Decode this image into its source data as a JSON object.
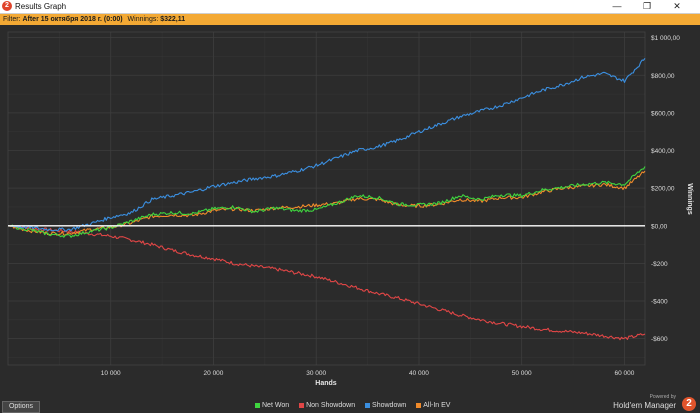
{
  "window": {
    "title": "Results Graph",
    "app_icon": "hm2-icon",
    "minimize_glyph": "—",
    "restore_glyph": "❐",
    "close_glyph": "✕"
  },
  "filter": {
    "prefix": "Filter:",
    "text": "After 15 октября 2018 г. (0:00)",
    "winnings_label": "Winnings:",
    "winnings_value": "$322,11"
  },
  "options_label": "Options",
  "brand": {
    "powered_by": "Powered by",
    "name": "Hold'em Manager",
    "logo_glyph": "2"
  },
  "colors": {
    "background": "#2b2b2b",
    "grid": "#3e3e3e",
    "zero_line": "#ffffff",
    "net_won": "#3fd53f",
    "non_showdown": "#e04646",
    "showdown": "#3b8fe0",
    "all_in_ev": "#f08a2a",
    "filter_bar": "#f3a934"
  },
  "chart_data": {
    "type": "line",
    "xlabel": "Hands",
    "ylabel": "Winnings",
    "xlim": [
      0,
      62000
    ],
    "ylim": [
      -740,
      1030
    ],
    "x_ticks": [
      10000,
      20000,
      30000,
      40000,
      50000,
      60000
    ],
    "x_tick_labels": [
      "10 000",
      "20 000",
      "30 000",
      "40 000",
      "50 000",
      "60 000"
    ],
    "y_ticks": [
      1000,
      800,
      600,
      400,
      200,
      0,
      -200,
      -400,
      -600
    ],
    "y_tick_labels": [
      "$1 000,00",
      "$800,00",
      "$600,00",
      "$400,00",
      "$200,00",
      "$0,00",
      "-$200",
      "-$400",
      "-$600"
    ],
    "grid": true,
    "legend_position": "bottom",
    "x": [
      0,
      2000,
      4000,
      6000,
      8000,
      10000,
      12000,
      14000,
      16000,
      18000,
      20000,
      22000,
      24000,
      26000,
      28000,
      30000,
      32000,
      34000,
      36000,
      38000,
      40000,
      42000,
      44000,
      46000,
      48000,
      50000,
      52000,
      54000,
      56000,
      58000,
      60000,
      62000
    ],
    "series": [
      {
        "name": "Net Won",
        "color": "#3fd53f",
        "values": [
          0,
          -20,
          -45,
          -55,
          -30,
          -10,
          25,
          60,
          70,
          65,
          90,
          100,
          75,
          95,
          80,
          85,
          120,
          160,
          150,
          115,
          110,
          120,
          160,
          140,
          165,
          160,
          190,
          205,
          220,
          230,
          220,
          315
        ]
      },
      {
        "name": "Non Showdown",
        "color": "#e04646",
        "values": [
          0,
          -12,
          -22,
          -30,
          -42,
          -55,
          -75,
          -100,
          -130,
          -155,
          -175,
          -200,
          -215,
          -230,
          -250,
          -270,
          -300,
          -330,
          -360,
          -385,
          -415,
          -445,
          -475,
          -500,
          -520,
          -535,
          -550,
          -560,
          -570,
          -585,
          -600,
          -575
        ]
      },
      {
        "name": "Showdown",
        "color": "#3b8fe0",
        "values": [
          0,
          -8,
          -20,
          -20,
          10,
          45,
          70,
          140,
          160,
          180,
          210,
          230,
          250,
          265,
          290,
          320,
          360,
          400,
          420,
          455,
          500,
          540,
          580,
          610,
          640,
          680,
          720,
          750,
          790,
          810,
          770,
          890
        ]
      },
      {
        "name": "All-In EV",
        "color": "#f08a2a",
        "values": [
          0,
          -25,
          -40,
          -40,
          -20,
          -8,
          15,
          50,
          58,
          55,
          80,
          90,
          80,
          95,
          100,
          110,
          120,
          145,
          140,
          110,
          105,
          115,
          140,
          130,
          150,
          150,
          180,
          200,
          210,
          220,
          200,
          290
        ]
      }
    ]
  }
}
